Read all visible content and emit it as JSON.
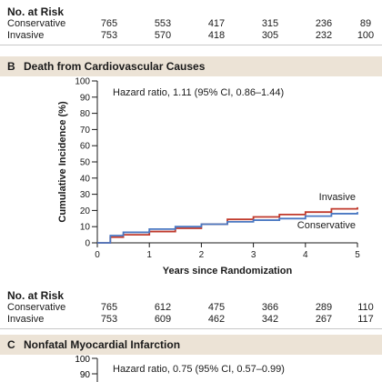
{
  "top_risk_table": {
    "title": "No. at Risk",
    "rows": [
      {
        "label": "Conservative",
        "values": [
          "765",
          "553",
          "417",
          "315",
          "236",
          "89"
        ]
      },
      {
        "label": "Invasive",
        "values": [
          "753",
          "570",
          "418",
          "305",
          "232",
          "100"
        ]
      }
    ]
  },
  "panel_b": {
    "letter": "B",
    "title": "Death from Cardiovascular Causes",
    "hazard": "Hazard ratio, 1.11 (95% CI, 0.86–1.44)"
  },
  "risk_table_b": {
    "title": "No. at Risk",
    "rows": [
      {
        "label": "Conservative",
        "values": [
          "765",
          "612",
          "475",
          "366",
          "289",
          "110"
        ]
      },
      {
        "label": "Invasive",
        "values": [
          "753",
          "609",
          "462",
          "342",
          "267",
          "117"
        ]
      }
    ]
  },
  "panel_c": {
    "letter": "C",
    "title": "Nonfatal Myocardial Infarction",
    "hazard": "Hazard ratio, 0.75 (95% CI, 0.57–0.99)",
    "ytick_visible": [
      "100",
      "90"
    ]
  },
  "chart_data": {
    "type": "line",
    "title": "Death from Cardiovascular Causes",
    "xlabel": "Years since Randomization",
    "ylabel": "Cumulative Incidence (%)",
    "xlim": [
      0,
      5
    ],
    "ylim": [
      0,
      100
    ],
    "xticks": [
      0,
      1,
      2,
      3,
      4,
      5
    ],
    "yticks": [
      0,
      10,
      20,
      30,
      40,
      50,
      60,
      70,
      80,
      90,
      100
    ],
    "annotation": "Hazard ratio, 1.11 (95% CI, 0.86–1.44)",
    "series": [
      {
        "name": "Invasive",
        "color": "#c0392b",
        "x": [
          0,
          0.25,
          0.5,
          1.0,
          1.5,
          2.0,
          2.5,
          3.0,
          3.5,
          4.0,
          4.5,
          5.0
        ],
        "y": [
          0,
          3.5,
          5.0,
          7.0,
          9.0,
          11.5,
          14.5,
          16.0,
          17.5,
          19.0,
          21.0,
          22.0
        ]
      },
      {
        "name": "Conservative",
        "color": "#4a78c2",
        "x": [
          0,
          0.25,
          0.5,
          1.0,
          1.5,
          2.0,
          2.5,
          3.0,
          3.5,
          4.0,
          4.5,
          5.0
        ],
        "y": [
          0,
          4.5,
          6.5,
          8.5,
          10.0,
          11.5,
          13.0,
          14.0,
          15.0,
          16.5,
          18.0,
          19.0
        ]
      }
    ]
  }
}
